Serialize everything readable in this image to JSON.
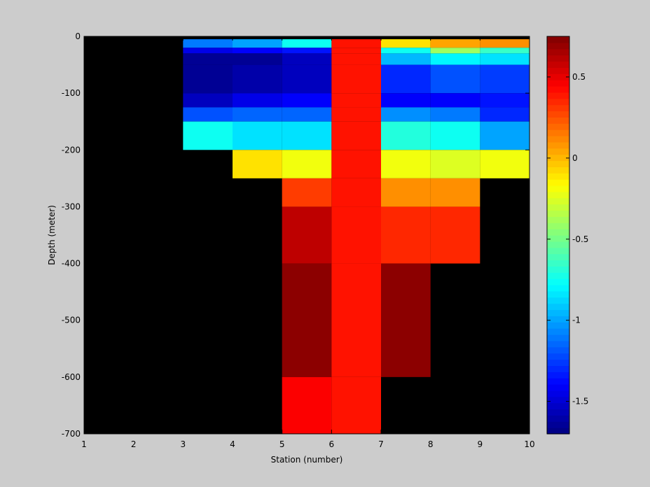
{
  "chart_data": {
    "type": "heatmap",
    "title": "",
    "xlabel": "Station (number)",
    "ylabel": "Depth (meter)",
    "xlim": [
      1,
      10
    ],
    "ylim": [
      -700,
      0
    ],
    "x_ticks": [
      1,
      2,
      3,
      4,
      5,
      6,
      7,
      8,
      9,
      10
    ],
    "y_ticks": [
      0,
      -100,
      -200,
      -300,
      -400,
      -500,
      -600,
      -700
    ],
    "background_color": "#000000",
    "colormap": "jet",
    "colorbar": {
      "position": "right",
      "range": [
        -1.7,
        0.75
      ],
      "ticks": [
        0.5,
        0,
        -0.5,
        -1,
        -1.5
      ]
    },
    "x_edges": [
      1,
      2,
      3,
      4,
      5,
      6,
      7,
      8,
      9,
      10
    ],
    "depth_edges": [
      0,
      -5,
      -20,
      -30,
      -50,
      -100,
      -125,
      -150,
      -200,
      -250,
      -300,
      -400,
      -600,
      -700
    ],
    "values": [
      [
        null,
        null,
        null,
        null,
        null,
        null,
        null,
        null,
        null
      ],
      [
        null,
        null,
        -1.1,
        -1.0,
        -0.75,
        0.4,
        -0.1,
        0.05,
        0.1
      ],
      [
        null,
        null,
        -1.45,
        -1.4,
        -1.35,
        0.4,
        -0.75,
        -0.4,
        -0.65
      ],
      [
        null,
        null,
        -1.65,
        -1.65,
        -1.55,
        0.4,
        -0.95,
        -0.8,
        -0.85
      ],
      [
        null,
        null,
        -1.65,
        -1.6,
        -1.55,
        0.4,
        -1.3,
        -1.2,
        -1.25
      ],
      [
        null,
        null,
        -1.55,
        -1.45,
        -1.4,
        0.4,
        -1.4,
        -1.4,
        -1.35
      ],
      [
        null,
        null,
        -1.2,
        -1.15,
        -1.15,
        0.4,
        -1.05,
        -1.1,
        -1.3
      ],
      [
        null,
        null,
        -0.75,
        -0.85,
        -0.85,
        0.4,
        -0.7,
        -0.75,
        -1.0
      ],
      [
        null,
        null,
        null,
        -0.1,
        -0.2,
        0.4,
        -0.2,
        -0.25,
        -0.2
      ],
      [
        null,
        null,
        null,
        null,
        0.3,
        0.4,
        0.1,
        0.1,
        null
      ],
      [
        null,
        null,
        null,
        null,
        0.6,
        0.4,
        0.35,
        0.35,
        null
      ],
      [
        null,
        null,
        null,
        null,
        0.72,
        0.4,
        0.72,
        null,
        null
      ],
      [
        null,
        null,
        null,
        null,
        0.45,
        0.4,
        null,
        null,
        null
      ]
    ]
  }
}
